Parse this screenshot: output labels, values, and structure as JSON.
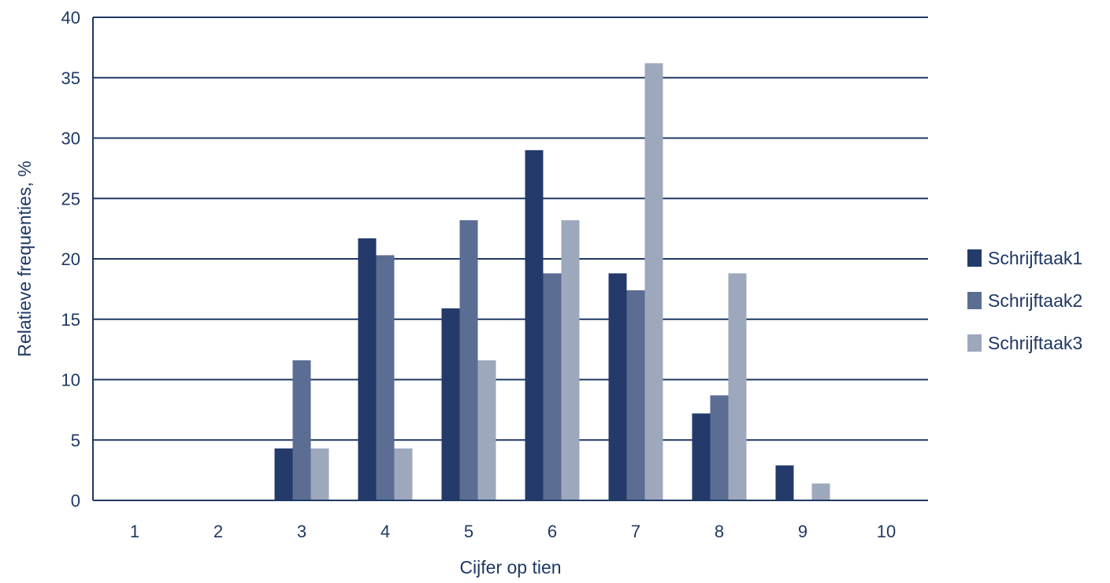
{
  "chart_data": {
    "type": "bar",
    "title": "",
    "xlabel": "Cijfer op tien",
    "ylabel": "Relatieve frequenties, %",
    "categories": [
      "1",
      "2",
      "3",
      "4",
      "5",
      "6",
      "7",
      "8",
      "9",
      "10"
    ],
    "series": [
      {
        "name": "Schrijftaak1",
        "color": "#243a6b",
        "values": [
          0,
          0,
          4.3,
          21.7,
          15.9,
          29.0,
          18.8,
          7.2,
          2.9,
          0
        ]
      },
      {
        "name": "Schrijftaak2",
        "color": "#5b6d93",
        "values": [
          0,
          0,
          11.6,
          20.3,
          23.2,
          18.8,
          17.4,
          8.7,
          0,
          0
        ]
      },
      {
        "name": "Schrijftaak3",
        "color": "#9ea8bd",
        "values": [
          0,
          0,
          4.3,
          4.3,
          11.6,
          23.2,
          36.2,
          18.8,
          1.4,
          0
        ]
      }
    ],
    "ylim": [
      0,
      40
    ],
    "yticks": [
      0,
      5,
      10,
      15,
      20,
      25,
      30,
      35,
      40
    ],
    "grid": true,
    "legend_position": "right"
  }
}
